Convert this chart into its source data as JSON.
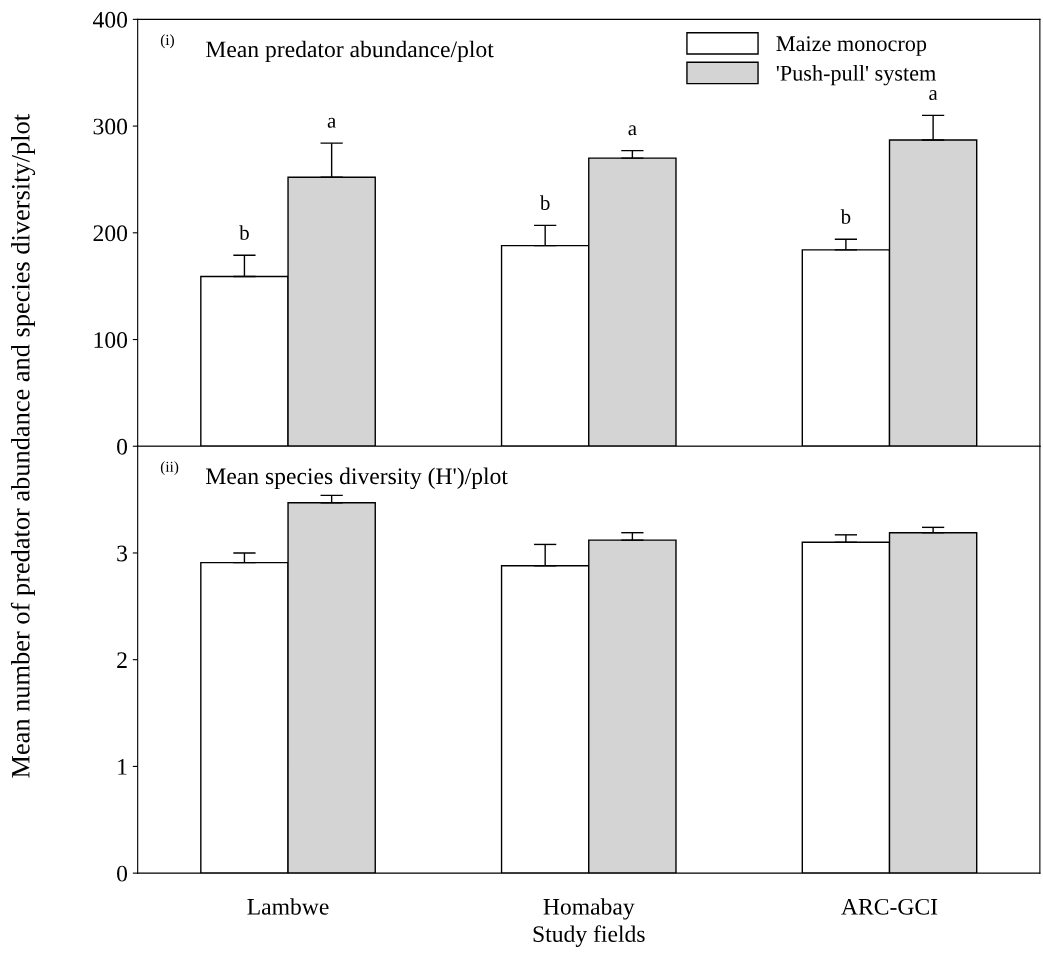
{
  "chart_data": [
    {
      "type": "bar",
      "title": "Mean predator abundance/plot",
      "ylabel": "Mean number of predator abundance and species diversity/plot",
      "annotations": [
        "(i)",
        "b",
        "a",
        "b",
        "a",
        "b",
        "a"
      ],
      "categories": [
        null,
        null,
        null
      ],
      "series": [
        {
          "name": "Maize monocrop",
          "color": "#ffffff",
          "values": [
            159,
            188,
            184
          ],
          "errors": [
            [
              159,
              179
            ],
            [
              188,
              207
            ],
            [
              184,
              194
            ]
          ]
        },
        {
          "name": "'Push-pull' system",
          "color": "#d4d4d4",
          "values": [
            252,
            270,
            287
          ],
          "errors": [
            [
              252,
              284
            ],
            [
              270,
              277
            ],
            [
              287,
              310
            ]
          ]
        }
      ],
      "ylim": [
        0,
        400
      ],
      "yticks": [
        0,
        100,
        200,
        300,
        400
      ],
      "legend": "top right",
      "grid": false,
      "tick_labels": "y"
    },
    {
      "type": "bar",
      "title": "Mean species diversity (H')/plot",
      "xlabel": "Study fields",
      "annotations": [
        "(ii)"
      ],
      "categories": [
        "Lambwe",
        "Homabay",
        "ARC-GCI"
      ],
      "series": [
        {
          "color": "#ffffff",
          "values": [
            2.91,
            2.88,
            3.1
          ],
          "errors": [
            [
              2.91,
              3.0
            ],
            [
              2.88,
              3.08
            ],
            [
              3.1,
              3.17
            ]
          ]
        },
        {
          "color": "#d4d4d4",
          "values": [
            3.47,
            3.12,
            3.19
          ],
          "errors": [
            [
              3.47,
              3.54
            ],
            [
              3.12,
              3.19
            ],
            [
              3.19,
              3.24
            ]
          ]
        }
      ],
      "ylim": [
        0,
        4
      ],
      "yticks": [
        0,
        1,
        2,
        3
      ],
      "grid": false
    }
  ]
}
